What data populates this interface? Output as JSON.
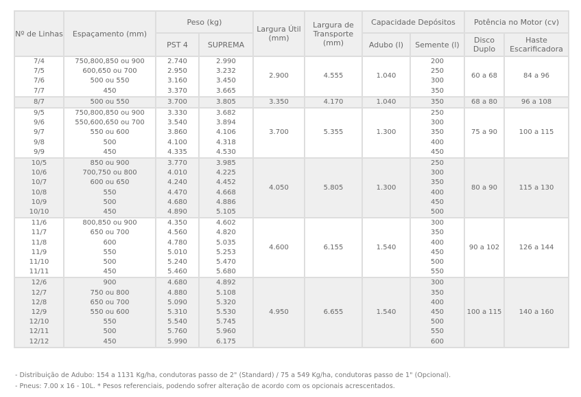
{
  "headers": {
    "linhas": "Nº de Linhas",
    "espacamento": "Espaçamento (mm)",
    "peso": "Peso (kg)",
    "pst4": "PST 4",
    "suprema": "SUPREMA",
    "largura_util": "Largura Útil (mm)",
    "largura_transporte": "Largura de Transporte (mm)",
    "capacidade": "Capacidade Depósitos",
    "adubo": "Adubo (l)",
    "semente": "Semente (l)",
    "potencia": "Potência no Motor (cv)",
    "disco": "Disco Duplo",
    "haste": "Haste Escarificadora"
  },
  "groups": [
    {
      "linhas": [
        "7/4",
        "7/5",
        "7/6",
        "7/7"
      ],
      "espacamento": [
        "750,800,850 ou 900",
        "600,650 ou 700",
        "500 ou 550",
        "450"
      ],
      "pst4": [
        "2.740",
        "2.950",
        "3.160",
        "3.370"
      ],
      "suprema": [
        "2.990",
        "3.232",
        "3.450",
        "3.665"
      ],
      "largura_util": "2.900",
      "largura_transporte": "4.555",
      "adubo": "1.040",
      "semente": [
        "200",
        "250",
        "300",
        "350"
      ],
      "disco": "60 a 68",
      "haste": "84 a 96",
      "shaded": false
    },
    {
      "linhas": [
        "8/7"
      ],
      "espacamento": [
        "500 ou 550"
      ],
      "pst4": [
        "3.700"
      ],
      "suprema": [
        "3.805"
      ],
      "largura_util": "3.350",
      "largura_transporte": "4.170",
      "adubo": "1.040",
      "semente": [
        "350"
      ],
      "disco": "68 a 80",
      "haste": "96 a 108",
      "shaded": true
    },
    {
      "linhas": [
        "9/5",
        "9/6",
        "9/7",
        "9/8",
        "9/9"
      ],
      "espacamento": [
        "750,800,850 ou 900",
        "550,600,650 ou 700",
        "550 ou 600",
        "500",
        "450"
      ],
      "pst4": [
        "3.330",
        "3.540",
        "3.860",
        "4.100",
        "4.335"
      ],
      "suprema": [
        "3.682",
        "3.894",
        "4.106",
        "4.318",
        "4.530"
      ],
      "largura_util": "3.700",
      "largura_transporte": "5.355",
      "adubo": "1.300",
      "semente": [
        "250",
        "300",
        "350",
        "400",
        "450"
      ],
      "disco": "75 a 90",
      "haste": "100 a 115",
      "shaded": false
    },
    {
      "linhas": [
        "10/5",
        "10/6",
        "10/7",
        "10/8",
        "10/9",
        "10/10"
      ],
      "espacamento": [
        "850 ou 900",
        "700,750 ou 800",
        "600 ou 650",
        "550",
        "500",
        "450"
      ],
      "pst4": [
        "3.770",
        "4.010",
        "4.240",
        "4.470",
        "4.680",
        "4.890"
      ],
      "suprema": [
        "3.985",
        "4.225",
        "4.452",
        "4.668",
        "4.886",
        "5.105"
      ],
      "largura_util": "4.050",
      "largura_transporte": "5.805",
      "adubo": "1.300",
      "semente": [
        "250",
        "300",
        "350",
        "400",
        "450",
        "500"
      ],
      "disco": "80 a 90",
      "haste": "115 a 130",
      "shaded": true
    },
    {
      "linhas": [
        "11/6",
        "11/7",
        "11/8",
        "11/9",
        "11/10",
        "11/11"
      ],
      "espacamento": [
        "800,850 ou 900",
        "650 ou 700",
        "600",
        "550",
        "500",
        "450"
      ],
      "pst4": [
        "4.350",
        "4.560",
        "4.780",
        "5.010",
        "5.240",
        "5.460"
      ],
      "suprema": [
        "4.602",
        "4.820",
        "5.035",
        "5.253",
        "5.470",
        "5.680"
      ],
      "largura_util": "4.600",
      "largura_transporte": "6.155",
      "adubo": "1.540",
      "semente": [
        "300",
        "350",
        "400",
        "450",
        "500",
        "550"
      ],
      "disco": "90 a 102",
      "haste": "126 a 144",
      "shaded": false
    },
    {
      "linhas": [
        "12/6",
        "12/7",
        "12/8",
        "12/9",
        "12/10",
        "12/11",
        "12/12"
      ],
      "espacamento": [
        "900",
        "750 ou 800",
        "650 ou 700",
        "550 ou 600",
        "550",
        "500",
        "450"
      ],
      "pst4": [
        "4.680",
        "4.880",
        "5.090",
        "5.310",
        "5.540",
        "5.760",
        "5.990"
      ],
      "suprema": [
        "4.892",
        "5.108",
        "5.320",
        "5.530",
        "5.745",
        "5.960",
        "6.175"
      ],
      "largura_util": "4.950",
      "largura_transporte": "6.655",
      "adubo": "1.540",
      "semente": [
        "300",
        "350",
        "400",
        "450",
        "500",
        "550",
        "600"
      ],
      "disco": "100 a 115",
      "haste": "140 a 160",
      "shaded": true
    }
  ],
  "notes": [
    "- Distribuição de Adubo: 154 a 1131 Kg/ha, condutoras passo de 2\" (Standard) / 75 a 549 Kg/ha, condutoras passo de 1\" (Opcional).",
    "- Pneus: 7.00 x 16 - 10L.    * Pesos referenciais, podendo sofrer alteração de acordo com os opcionais acrescentados."
  ]
}
